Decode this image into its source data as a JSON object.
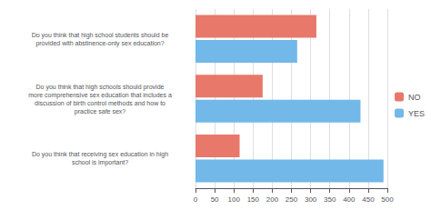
{
  "chart_data": {
    "type": "bar",
    "orientation": "horizontal",
    "categories": [
      "Do you think that high school students should be\nprovided with abstinence-only sex education?",
      "Do you think that high schools should provide\nmore comprehensive sex education that includes a\ndiscussion of birth control methods and how to\npractice safe sex?",
      "Do you think that receiving sex education in high\nschool is important?"
    ],
    "series": [
      {
        "name": "NO",
        "color": "#E8786A",
        "values": [
          315,
          175,
          115
        ]
      },
      {
        "name": "YES",
        "color": "#72B8E8",
        "values": [
          265,
          430,
          490
        ]
      }
    ],
    "xlim": [
      0,
      500
    ],
    "xticks": [
      0,
      50,
      100,
      150,
      200,
      250,
      300,
      350,
      400,
      450,
      500
    ],
    "grid": true,
    "legend": "right"
  }
}
